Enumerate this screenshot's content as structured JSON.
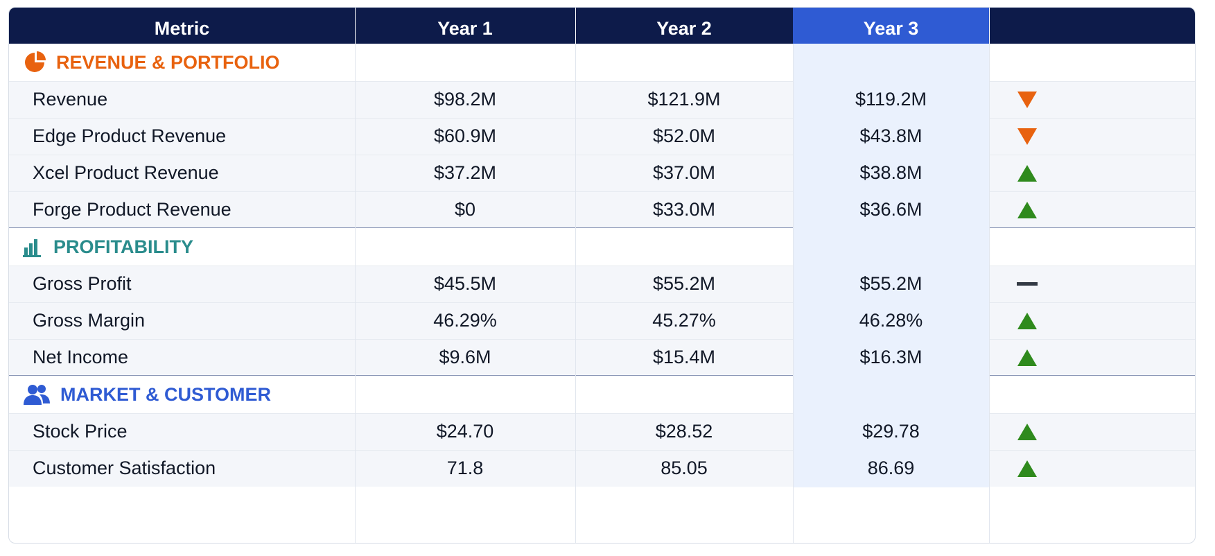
{
  "header": {
    "metric": "Metric",
    "years": [
      "Year 1",
      "Year 2",
      "Year 3"
    ],
    "trend": ""
  },
  "colors": {
    "header_bg": "#0d1b4a",
    "highlight_header_bg": "#2f5bd3",
    "highlight_column_bg": "#eaf1fd",
    "trend_up": "#2f8a1d",
    "trend_down": "#e8620f",
    "section_revenue": "#e8620f",
    "section_profitability": "#2a8c8c",
    "section_market": "#2f5bd3"
  },
  "sections": [
    {
      "title": "REVENUE & PORTFOLIO",
      "icon": "pie-chart-icon",
      "rows": [
        {
          "metric": "Revenue",
          "y1": "$98.2M",
          "y2": "$121.9M",
          "y3": "$119.2M",
          "trend": "down"
        },
        {
          "metric": "Edge Product Revenue",
          "y1": "$60.9M",
          "y2": "$52.0M",
          "y3": "$43.8M",
          "trend": "down"
        },
        {
          "metric": "Xcel Product Revenue",
          "y1": "$37.2M",
          "y2": "$37.0M",
          "y3": "$38.8M",
          "trend": "up"
        },
        {
          "metric": "Forge Product Revenue",
          "y1": "$0",
          "y2": "$33.0M",
          "y3": "$36.6M",
          "trend": "up"
        }
      ]
    },
    {
      "title": "PROFITABILITY",
      "icon": "bar-chart-icon",
      "rows": [
        {
          "metric": "Gross Profit",
          "y1": "$45.5M",
          "y2": "$55.2M",
          "y3": "$55.2M",
          "trend": "flat"
        },
        {
          "metric": "Gross Margin",
          "y1": "46.29%",
          "y2": "45.27%",
          "y3": "46.28%",
          "trend": "up"
        },
        {
          "metric": "Net Income",
          "y1": "$9.6M",
          "y2": "$15.4M",
          "y3": "$16.3M",
          "trend": "up"
        }
      ]
    },
    {
      "title": "MARKET & CUSTOMER",
      "icon": "users-icon",
      "rows": [
        {
          "metric": "Stock Price",
          "y1": "$24.70",
          "y2": "$28.52",
          "y3": "$29.78",
          "trend": "up"
        },
        {
          "metric": "Customer Satisfaction",
          "y1": "71.8",
          "y2": "85.05",
          "y3": "86.69",
          "trend": "up"
        }
      ]
    }
  ]
}
